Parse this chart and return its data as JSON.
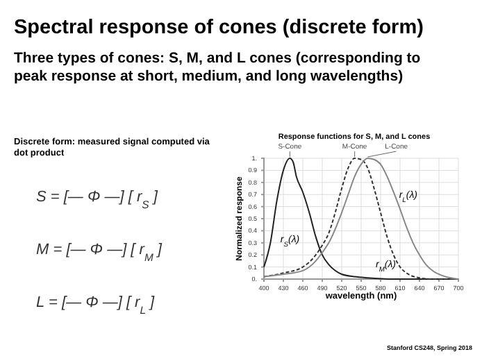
{
  "chart_data": {
    "type": "line",
    "title": "Spectral response of cones (discrete form)",
    "subtitle": "Three types of cones: S, M, and L cones (corresponding to peak response at short, medium, and long wavelengths)",
    "legend_title": "Response functions for S, M, and L cones",
    "xlabel": "wavelength (nm)",
    "ylabel": "Normalized response",
    "xlim": [
      400,
      700
    ],
    "xticks": [
      400,
      430,
      460,
      490,
      520,
      550,
      580,
      610,
      640,
      670,
      700
    ],
    "ylim": [
      0,
      1
    ],
    "yticks": [
      {
        "value": 0,
        "label": "0."
      },
      0.1,
      0.2,
      0.3,
      0.4,
      0.5,
      0.6,
      0.7,
      0.8,
      0.9,
      {
        "value": 1,
        "label": "1."
      }
    ],
    "grid": true,
    "legend": false,
    "marker": "none",
    "series": [
      {
        "name": "S-Cone",
        "color": "#222222",
        "line_style": "solid",
        "x": [
          400,
          410,
          420,
          430,
          440,
          445,
          450,
          460,
          470,
          480,
          490,
          500,
          510,
          520,
          540,
          560,
          600,
          700
        ],
        "values": [
          0.1,
          0.3,
          0.65,
          0.9,
          1.0,
          0.97,
          0.85,
          0.72,
          0.55,
          0.35,
          0.2,
          0.12,
          0.07,
          0.04,
          0.02,
          0.01,
          0,
          0
        ]
      },
      {
        "name": "M-Cone",
        "color": "#333333",
        "line_style": "dashed",
        "x": [
          400,
          430,
          460,
          480,
          490,
          500,
          510,
          520,
          530,
          540,
          550,
          560,
          570,
          580,
          590,
          600,
          610,
          620,
          640,
          660,
          700
        ],
        "values": [
          0.02,
          0.05,
          0.1,
          0.2,
          0.28,
          0.38,
          0.55,
          0.75,
          0.92,
          1.0,
          0.99,
          0.92,
          0.75,
          0.55,
          0.35,
          0.2,
          0.1,
          0.05,
          0.01,
          0,
          0
        ]
      },
      {
        "name": "L-Cone",
        "color": "#888888",
        "line_style": "solid",
        "x": [
          400,
          430,
          460,
          480,
          490,
          500,
          520,
          530,
          540,
          550,
          560,
          570,
          580,
          590,
          600,
          610,
          620,
          630,
          640,
          650,
          660,
          680,
          700
        ],
        "values": [
          0.02,
          0.04,
          0.07,
          0.15,
          0.22,
          0.3,
          0.55,
          0.7,
          0.85,
          0.95,
          1.0,
          0.99,
          0.95,
          0.85,
          0.72,
          0.58,
          0.43,
          0.3,
          0.2,
          0.12,
          0.07,
          0.02,
          0
        ]
      }
    ],
    "annotations": [
      "Discrete form: measured signal computed via dot product",
      "S = [— Φ —] [ r$_{S}$ ]",
      "M = [— Φ —] [ r$_{M}$ ]",
      "L = [— Φ —] [ r$_{L}$ ]",
      {
        "text": "r$_{S}$(λ)",
        "x": 417,
        "y": 0.35
      },
      {
        "text": "r$_{M}$(λ)",
        "x": 610,
        "y": 0.1
      },
      {
        "text": "r$_{L}$(λ)",
        "x": 600,
        "y": 0.72
      },
      "Stanford CS248, Spring 2018"
    ]
  }
}
